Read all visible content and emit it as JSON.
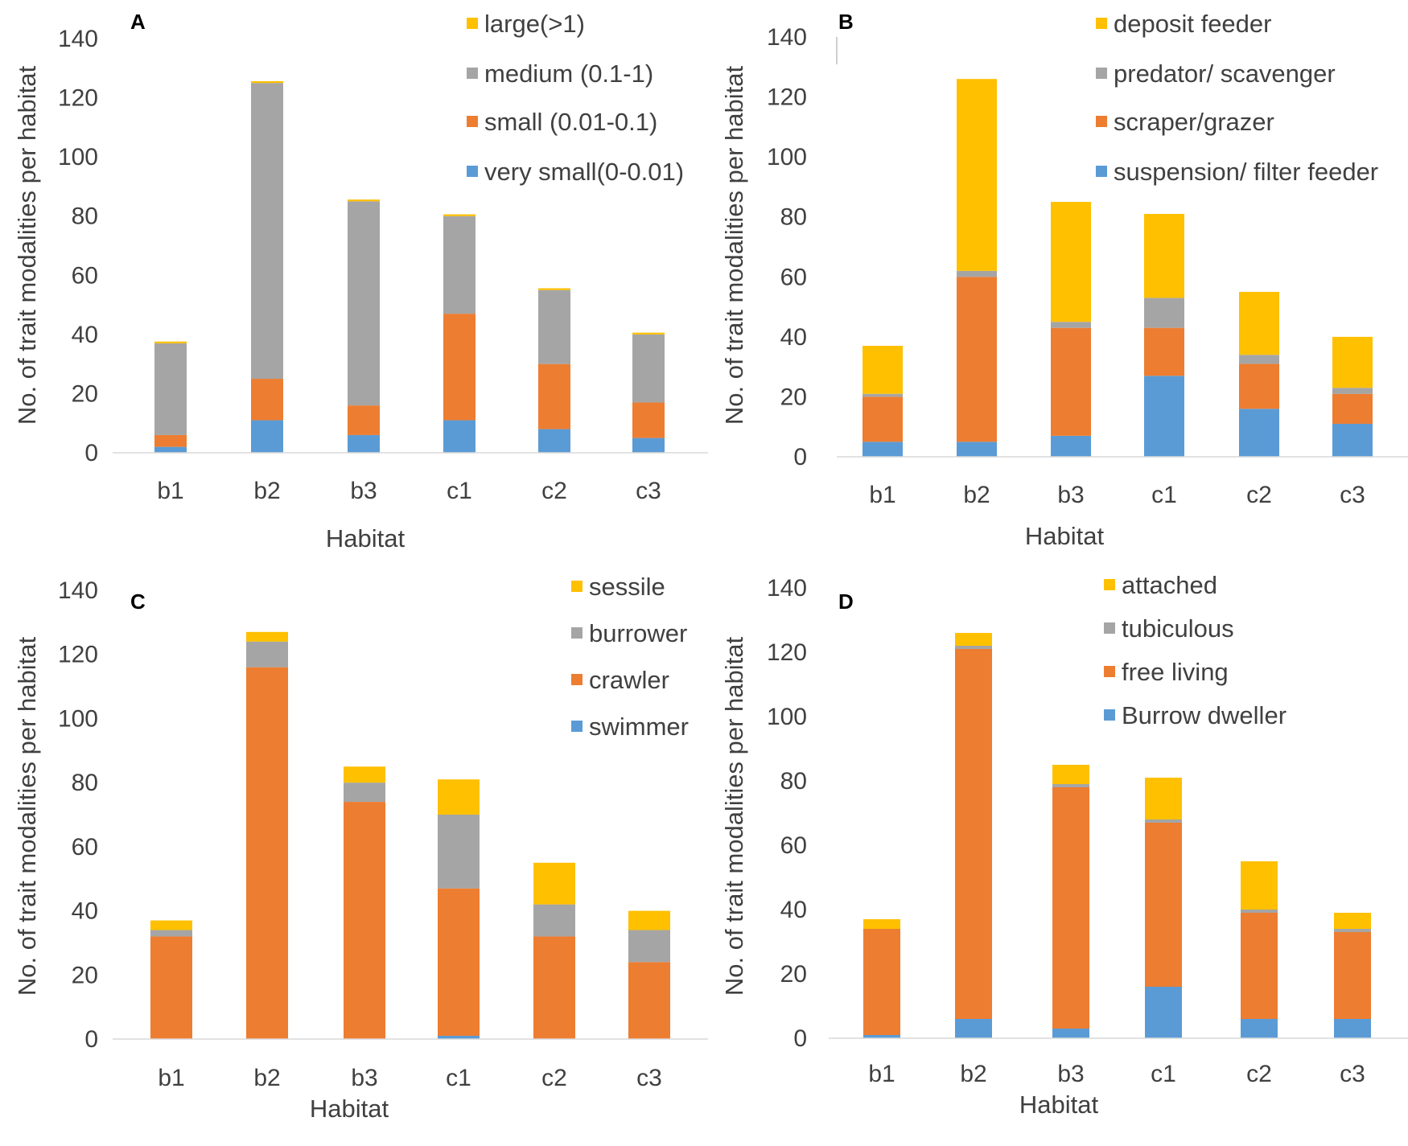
{
  "chart_data": [
    {
      "panel": "A",
      "type": "bar",
      "stacked": true,
      "categories": [
        "b1",
        "b2",
        "b3",
        "c1",
        "c2",
        "c3"
      ],
      "xlabel": "Habitat",
      "ylabel": "No. of trait modalities per habitat",
      "ylim": [
        0,
        140
      ],
      "yticks": [
        0,
        20,
        40,
        60,
        80,
        100,
        120,
        140
      ],
      "grid": false,
      "legend_position": "top-right",
      "series": [
        {
          "name": "very small(0-0.01)",
          "color": "#5b9bd5",
          "values": [
            2,
            11,
            6,
            11,
            8,
            5
          ]
        },
        {
          "name": "small (0.01-0.1)",
          "color": "#ed7d31",
          "values": [
            4,
            14,
            10,
            36,
            22,
            12
          ]
        },
        {
          "name": "medium (0.1-1)",
          "color": "#a5a5a5",
          "values": [
            31,
            100,
            69,
            33,
            25,
            23
          ]
        },
        {
          "name": "large(>1)",
          "color": "#ffc000",
          "values": [
            0.6,
            0.6,
            0.6,
            0.6,
            0.6,
            0.6
          ]
        }
      ]
    },
    {
      "panel": "B",
      "type": "bar",
      "stacked": true,
      "categories": [
        "b1",
        "b2",
        "b3",
        "c1",
        "c2",
        "c3"
      ],
      "xlabel": "Habitat",
      "ylabel": "No. of trait modalities per habitat",
      "ylim": [
        0,
        140
      ],
      "yticks": [
        0,
        20,
        40,
        60,
        80,
        100,
        120,
        140
      ],
      "grid": false,
      "legend_position": "top-right",
      "series": [
        {
          "name": "suspension/ filter feeder",
          "color": "#5b9bd5",
          "values": [
            5,
            5,
            7,
            27,
            16,
            11
          ]
        },
        {
          "name": "scraper/grazer",
          "color": "#ed7d31",
          "values": [
            15,
            55,
            36,
            16,
            15,
            10
          ]
        },
        {
          "name": "predator/ scavenger",
          "color": "#a5a5a5",
          "values": [
            1,
            2,
            2,
            10,
            3,
            2
          ]
        },
        {
          "name": "deposit feeder",
          "color": "#ffc000",
          "values": [
            16,
            64,
            40,
            28,
            21,
            17
          ]
        }
      ]
    },
    {
      "panel": "C",
      "type": "bar",
      "stacked": true,
      "categories": [
        "b1",
        "b2",
        "b3",
        "c1",
        "c2",
        "c3"
      ],
      "xlabel": "Habitat",
      "ylabel": "No. of trait modalities per habitat",
      "ylim": [
        0,
        140
      ],
      "yticks": [
        0,
        20,
        40,
        60,
        80,
        100,
        120,
        140
      ],
      "grid": false,
      "legend_position": "top-right",
      "series": [
        {
          "name": "swimmer",
          "color": "#5b9bd5",
          "values": [
            0,
            0,
            0,
            1,
            0,
            0
          ]
        },
        {
          "name": "crawler",
          "color": "#ed7d31",
          "values": [
            32,
            116,
            74,
            46,
            32,
            24
          ]
        },
        {
          "name": "burrower",
          "color": "#a5a5a5",
          "values": [
            2,
            8,
            6,
            23,
            10,
            10
          ]
        },
        {
          "name": "sessile",
          "color": "#ffc000",
          "values": [
            3,
            3,
            5,
            11,
            13,
            6
          ]
        }
      ]
    },
    {
      "panel": "D",
      "type": "bar",
      "stacked": true,
      "categories": [
        "b1",
        "b2",
        "b3",
        "c1",
        "c2",
        "c3"
      ],
      "xlabel": "Habitat",
      "ylabel": "No. of trait modalities per habitat",
      "ylim": [
        0,
        140
      ],
      "yticks": [
        0,
        20,
        40,
        60,
        80,
        100,
        120,
        140
      ],
      "grid": false,
      "legend_position": "top-right",
      "series": [
        {
          "name": "Burrow dweller",
          "color": "#5b9bd5",
          "values": [
            1,
            6,
            3,
            16,
            6,
            6
          ]
        },
        {
          "name": "free living",
          "color": "#ed7d31",
          "values": [
            33,
            115,
            75,
            51,
            33,
            27
          ]
        },
        {
          "name": "tubiculous",
          "color": "#a5a5a5",
          "values": [
            0,
            1,
            1,
            1,
            1,
            1
          ]
        },
        {
          "name": "attached",
          "color": "#ffc000",
          "values": [
            3,
            4,
            6,
            13,
            15,
            5
          ]
        }
      ]
    }
  ]
}
